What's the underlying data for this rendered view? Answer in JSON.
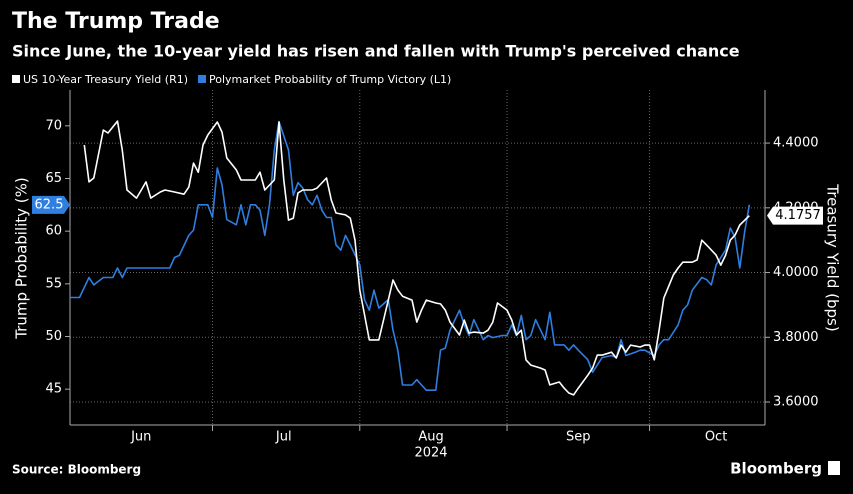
{
  "chart_data": {
    "type": "line",
    "title": "The Trump Trade",
    "subtitle": "Since June, the 10-year yield has risen and fallen with Trump's perceived chance",
    "ylabel": "Trump Probability (%)",
    "y2label": "Treasury Yield (bps)",
    "xlabel": "2024",
    "source": "Source: Bloomberg",
    "logo": "Bloomberg",
    "legend": "top-left",
    "grid": true,
    "xlim": [
      0,
      146.3
    ],
    "xticks": [
      {
        "value": 15,
        "label": "Jun"
      },
      {
        "value": 45,
        "label": "Jul"
      },
      {
        "value": 76,
        "label": "Aug"
      },
      {
        "value": 107,
        "label": "Sep"
      },
      {
        "value": 136,
        "label": "Oct"
      }
    ],
    "xgrid": [
      30,
      61,
      92,
      122
    ],
    "ylim": [
      41.6,
      73.4
    ],
    "yticks": [
      45,
      50,
      55,
      60,
      65,
      70
    ],
    "y2lim": [
      3.529,
      4.564
    ],
    "y2ticks": [
      {
        "value": 3.6,
        "label": "3.6000"
      },
      {
        "value": 3.8,
        "label": "3.8000"
      },
      {
        "value": 4.0,
        "label": "4.0000"
      },
      {
        "value": 4.2,
        "label": "4.2000"
      },
      {
        "value": 4.4,
        "label": "4.4000"
      }
    ],
    "series": [
      {
        "name": "US 10-Year Treasury Yield (R1)",
        "color": "#ffffff",
        "axis": "y2",
        "x": [
          3,
          4,
          5,
          7,
          8,
          10,
          11,
          12,
          14,
          15,
          16,
          17,
          19,
          20,
          22,
          24,
          25,
          26,
          27,
          28,
          29,
          31,
          32,
          33,
          35,
          36,
          37,
          39,
          40,
          41,
          43,
          44,
          45,
          46,
          47,
          48,
          49,
          51,
          52,
          54,
          55,
          56,
          58,
          59,
          60,
          61,
          63,
          64,
          65,
          67,
          68,
          69,
          70,
          72,
          73,
          74,
          75,
          77,
          78,
          79,
          80,
          82,
          83,
          84,
          85,
          87,
          88,
          89,
          90,
          92,
          93,
          94,
          95,
          96,
          97,
          99,
          100,
          101,
          103,
          104,
          105,
          106,
          107,
          109,
          110,
          111,
          112,
          114,
          115,
          116,
          117,
          118,
          120,
          121,
          122,
          123,
          124,
          125,
          127,
          128,
          129,
          131,
          132,
          133,
          134,
          136,
          137,
          138,
          139,
          140,
          141,
          143
        ],
        "values": [
          4.394,
          4.28,
          4.292,
          4.44,
          4.431,
          4.468,
          4.378,
          4.255,
          4.23,
          4.255,
          4.28,
          4.23,
          4.249,
          4.255,
          4.249,
          4.242,
          4.264,
          4.338,
          4.31,
          4.394,
          4.425,
          4.465,
          4.434,
          4.354,
          4.317,
          4.286,
          4.286,
          4.286,
          4.31,
          4.255,
          4.286,
          4.465,
          4.286,
          4.162,
          4.168,
          4.246,
          4.255,
          4.255,
          4.261,
          4.292,
          4.224,
          4.184,
          4.178,
          4.168,
          4.1,
          3.946,
          3.792,
          3.792,
          3.792,
          3.915,
          3.977,
          3.946,
          3.927,
          3.915,
          3.847,
          3.884,
          3.915,
          3.906,
          3.903,
          3.884,
          3.847,
          3.807,
          3.853,
          3.813,
          3.816,
          3.813,
          3.822,
          3.847,
          3.906,
          3.884,
          3.853,
          3.807,
          3.822,
          3.73,
          3.714,
          3.705,
          3.699,
          3.653,
          3.662,
          3.643,
          3.628,
          3.622,
          3.643,
          3.683,
          3.705,
          3.745,
          3.745,
          3.754,
          3.736,
          3.776,
          3.754,
          3.776,
          3.77,
          3.776,
          3.776,
          3.73,
          3.822,
          3.921,
          3.992,
          4.014,
          4.032,
          4.032,
          4.039,
          4.1,
          4.085,
          4.054,
          4.023,
          4.054,
          4.1,
          4.116,
          4.147,
          4.1757
        ]
      },
      {
        "name": "Polymarket Probability of Trump Victory (L1)",
        "color": "#2f7fe0",
        "axis": "y",
        "x": [
          0,
          2,
          4,
          5,
          7,
          8,
          9,
          10,
          11,
          12,
          14,
          17,
          20,
          21,
          22,
          23,
          25,
          26,
          27,
          29,
          30,
          31,
          32,
          33,
          35,
          36,
          37,
          38,
          39,
          40,
          41,
          42,
          43,
          44,
          46,
          47,
          48,
          49,
          50,
          51,
          52,
          53,
          54,
          55,
          56,
          57,
          58,
          59,
          61,
          62,
          63,
          64,
          65,
          67,
          68,
          69,
          70,
          72,
          73,
          74,
          75,
          77,
          78,
          79,
          80,
          82,
          83,
          84,
          85,
          87,
          88,
          89,
          91,
          92,
          93,
          94,
          95,
          96,
          97,
          98,
          100,
          101,
          102,
          104,
          105,
          106,
          107,
          109,
          110,
          111,
          112,
          114,
          115,
          116,
          117,
          119,
          120,
          121,
          123,
          124,
          125,
          126,
          128,
          129,
          130,
          131,
          133,
          134,
          135,
          136,
          138,
          139,
          140,
          141,
          142,
          143
        ],
        "values": [
          53.7,
          53.7,
          55.6,
          54.9,
          55.6,
          55.6,
          55.6,
          56.5,
          55.6,
          56.5,
          56.5,
          56.5,
          56.5,
          56.5,
          57.5,
          57.7,
          59.6,
          60.1,
          62.5,
          62.5,
          61.3,
          66.0,
          64.4,
          61.1,
          60.6,
          62.5,
          60.6,
          62.5,
          62.5,
          62.0,
          59.6,
          62.5,
          67.7,
          70.4,
          67.7,
          63.4,
          64.6,
          64.1,
          63.0,
          62.5,
          63.4,
          62.0,
          61.3,
          61.3,
          58.7,
          58.2,
          59.6,
          58.7,
          56.8,
          53.5,
          52.5,
          54.4,
          52.7,
          53.5,
          50.6,
          48.7,
          45.4,
          45.4,
          45.9,
          45.4,
          44.9,
          44.9,
          48.7,
          48.9,
          50.6,
          52.5,
          51.1,
          50.1,
          51.6,
          49.7,
          50.1,
          49.9,
          50.1,
          50.1,
          51.1,
          50.1,
          52.0,
          49.7,
          50.1,
          51.6,
          49.7,
          52.3,
          49.2,
          49.2,
          48.7,
          49.2,
          48.7,
          47.8,
          46.6,
          47.3,
          48.0,
          48.2,
          48.0,
          49.7,
          48.2,
          48.5,
          48.7,
          48.7,
          48.2,
          49.2,
          49.7,
          49.7,
          51.1,
          52.5,
          53.0,
          54.4,
          55.6,
          55.4,
          54.9,
          56.8,
          58.2,
          60.3,
          59.4,
          56.5,
          59.9,
          62.5
        ]
      }
    ]
  }
}
